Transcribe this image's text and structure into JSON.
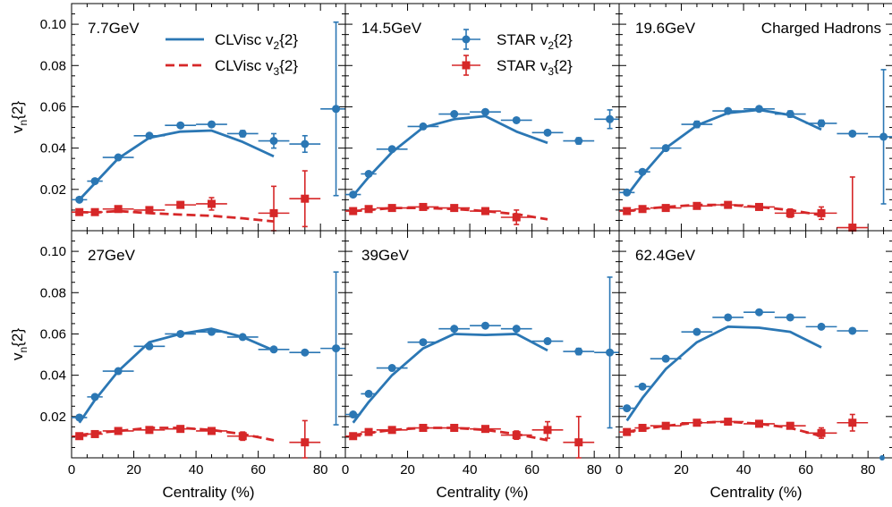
{
  "annotation": "Charged Hadrons",
  "legend": [
    {
      "label": "CLVisc v",
      "sub": "2",
      "suffix": "{2}",
      "kind": "model",
      "series": "v2"
    },
    {
      "label": "CLVisc v",
      "sub": "3",
      "suffix": "{2}",
      "kind": "model",
      "series": "v3"
    },
    {
      "label": "STAR v",
      "sub": "2",
      "suffix": "{2}",
      "kind": "data",
      "series": "v2"
    },
    {
      "label": "STAR v",
      "sub": "3",
      "suffix": "{2}",
      "kind": "data",
      "series": "v3"
    }
  ],
  "colors": {
    "v2": "#2b77b4",
    "v3": "#d62728"
  },
  "axes": {
    "xlabel": "Centrality (%)",
    "ylabel_main": "v",
    "ylabel_sub": "n",
    "ylabel_suffix": "{2}",
    "xlim": [
      0,
      88
    ],
    "ylim": [
      0,
      0.11
    ],
    "xticks": [
      0,
      20,
      40,
      60,
      80
    ],
    "yticks": [
      0.02,
      0.04,
      0.06,
      0.08,
      0.1
    ],
    "ytick_labels": [
      "0.02",
      "0.04",
      "0.06",
      "0.08",
      "0.10"
    ]
  },
  "chart_data": [
    {
      "type": "line",
      "panel_label": "7.7GeV",
      "clvisc_v2": {
        "x": [
          2.5,
          7.5,
          15,
          25,
          35,
          45,
          55,
          65
        ],
        "y": [
          0.015,
          0.023,
          0.035,
          0.045,
          0.048,
          0.0485,
          0.043,
          0.036
        ]
      },
      "clvisc_v3": {
        "x": [
          2.5,
          7.5,
          15,
          25,
          35,
          45,
          55,
          65
        ],
        "y": [
          0.009,
          0.0088,
          0.0095,
          0.0085,
          0.0078,
          0.0072,
          0.006,
          0.0045
        ]
      },
      "star_v2": [
        {
          "x": 2.5,
          "y": 0.015,
          "xerr": 2.5,
          "yerr": 0.001
        },
        {
          "x": 7.5,
          "y": 0.024,
          "xerr": 2.5,
          "yerr": 0.001
        },
        {
          "x": 15,
          "y": 0.0355,
          "xerr": 5,
          "yerr": 0.001
        },
        {
          "x": 25,
          "y": 0.046,
          "xerr": 5,
          "yerr": 0.001
        },
        {
          "x": 35,
          "y": 0.051,
          "xerr": 5,
          "yerr": 0.001
        },
        {
          "x": 45,
          "y": 0.0515,
          "xerr": 5,
          "yerr": 0.0012
        },
        {
          "x": 55,
          "y": 0.047,
          "xerr": 5,
          "yerr": 0.0015
        },
        {
          "x": 65,
          "y": 0.0435,
          "xerr": 5,
          "yerr": 0.0035
        },
        {
          "x": 75,
          "y": 0.042,
          "xerr": 5,
          "yerr": 0.004
        },
        {
          "x": 85,
          "y": 0.059,
          "xerr": 5,
          "yerr": 0.042
        }
      ],
      "star_v3": [
        {
          "x": 2.5,
          "y": 0.009,
          "xerr": 2.5,
          "yerr": 0.001
        },
        {
          "x": 7.5,
          "y": 0.009,
          "xerr": 2.5,
          "yerr": 0.001
        },
        {
          "x": 15,
          "y": 0.0105,
          "xerr": 5,
          "yerr": 0.001
        },
        {
          "x": 25,
          "y": 0.01,
          "xerr": 5,
          "yerr": 0.001
        },
        {
          "x": 35,
          "y": 0.0125,
          "xerr": 5,
          "yerr": 0.0015
        },
        {
          "x": 45,
          "y": 0.013,
          "xerr": 5,
          "yerr": 0.003
        },
        {
          "x": 65,
          "y": 0.0085,
          "xerr": 5,
          "yerr": 0.013
        },
        {
          "x": 75,
          "y": 0.0155,
          "xerr": 5,
          "yerr": 0.0135
        }
      ]
    },
    {
      "type": "line",
      "panel_label": "14.5GeV",
      "clvisc_v2": {
        "x": [
          2.5,
          7.5,
          15,
          25,
          35,
          45,
          55,
          65
        ],
        "y": [
          0.017,
          0.026,
          0.038,
          0.05,
          0.054,
          0.0555,
          0.048,
          0.0425
        ]
      },
      "clvisc_v3": {
        "x": [
          2.5,
          7.5,
          15,
          25,
          35,
          45,
          55,
          65
        ],
        "y": [
          0.0095,
          0.01,
          0.011,
          0.011,
          0.0105,
          0.0095,
          0.008,
          0.0055
        ]
      },
      "star_v2": [
        {
          "x": 2.5,
          "y": 0.0175,
          "xerr": 2.5,
          "yerr": 0.001
        },
        {
          "x": 7.5,
          "y": 0.0275,
          "xerr": 2.5,
          "yerr": 0.001
        },
        {
          "x": 15,
          "y": 0.0395,
          "xerr": 5,
          "yerr": 0.001
        },
        {
          "x": 25,
          "y": 0.0505,
          "xerr": 5,
          "yerr": 0.001
        },
        {
          "x": 35,
          "y": 0.0565,
          "xerr": 5,
          "yerr": 0.001
        },
        {
          "x": 45,
          "y": 0.0575,
          "xerr": 5,
          "yerr": 0.001
        },
        {
          "x": 55,
          "y": 0.0535,
          "xerr": 5,
          "yerr": 0.001
        },
        {
          "x": 65,
          "y": 0.0475,
          "xerr": 5,
          "yerr": 0.001
        },
        {
          "x": 75,
          "y": 0.0435,
          "xerr": 5,
          "yerr": 0.0015
        },
        {
          "x": 85,
          "y": 0.054,
          "xerr": 5,
          "yerr": 0.0045
        }
      ],
      "star_v3": [
        {
          "x": 2.5,
          "y": 0.0095,
          "xerr": 2.5,
          "yerr": 0.001
        },
        {
          "x": 7.5,
          "y": 0.0105,
          "xerr": 2.5,
          "yerr": 0.001
        },
        {
          "x": 15,
          "y": 0.011,
          "xerr": 5,
          "yerr": 0.001
        },
        {
          "x": 25,
          "y": 0.0115,
          "xerr": 5,
          "yerr": 0.001
        },
        {
          "x": 35,
          "y": 0.011,
          "xerr": 5,
          "yerr": 0.001
        },
        {
          "x": 45,
          "y": 0.0095,
          "xerr": 5,
          "yerr": 0.0015
        },
        {
          "x": 55,
          "y": 0.0065,
          "xerr": 5,
          "yerr": 0.0035
        }
      ]
    },
    {
      "type": "line",
      "panel_label": "19.6GeV",
      "clvisc_v2": {
        "x": [
          2.5,
          7.5,
          15,
          25,
          35,
          45,
          55,
          65
        ],
        "y": [
          0.017,
          0.027,
          0.04,
          0.051,
          0.057,
          0.0585,
          0.056,
          0.049
        ]
      },
      "clvisc_v3": {
        "x": [
          2.5,
          7.5,
          15,
          25,
          35,
          45,
          55,
          65
        ],
        "y": [
          0.0095,
          0.0105,
          0.0115,
          0.0125,
          0.0125,
          0.0115,
          0.01,
          0.0075
        ]
      },
      "star_v2": [
        {
          "x": 2.5,
          "y": 0.0185,
          "xerr": 2.5,
          "yerr": 0.001
        },
        {
          "x": 7.5,
          "y": 0.0285,
          "xerr": 2.5,
          "yerr": 0.001
        },
        {
          "x": 15,
          "y": 0.04,
          "xerr": 5,
          "yerr": 0.001
        },
        {
          "x": 25,
          "y": 0.0515,
          "xerr": 5,
          "yerr": 0.0015
        },
        {
          "x": 35,
          "y": 0.058,
          "xerr": 5,
          "yerr": 0.001
        },
        {
          "x": 45,
          "y": 0.059,
          "xerr": 5,
          "yerr": 0.001
        },
        {
          "x": 55,
          "y": 0.0565,
          "xerr": 5,
          "yerr": 0.0015
        },
        {
          "x": 65,
          "y": 0.052,
          "xerr": 5,
          "yerr": 0.0015
        },
        {
          "x": 75,
          "y": 0.047,
          "xerr": 5,
          "yerr": 0.001
        },
        {
          "x": 85,
          "y": 0.0455,
          "xerr": 5,
          "yerr": 0.0325
        }
      ],
      "star_v3": [
        {
          "x": 2.5,
          "y": 0.0095,
          "xerr": 2.5,
          "yerr": 0.001
        },
        {
          "x": 7.5,
          "y": 0.0105,
          "xerr": 2.5,
          "yerr": 0.001
        },
        {
          "x": 15,
          "y": 0.011,
          "xerr": 5,
          "yerr": 0.001
        },
        {
          "x": 25,
          "y": 0.012,
          "xerr": 5,
          "yerr": 0.001
        },
        {
          "x": 35,
          "y": 0.0125,
          "xerr": 5,
          "yerr": 0.001
        },
        {
          "x": 45,
          "y": 0.0115,
          "xerr": 5,
          "yerr": 0.001
        },
        {
          "x": 55,
          "y": 0.0085,
          "xerr": 5,
          "yerr": 0.002
        },
        {
          "x": 65,
          "y": 0.0085,
          "xerr": 5,
          "yerr": 0.003
        },
        {
          "x": 75,
          "y": 0.0015,
          "xerr": 5,
          "yerr": 0.0245
        }
      ]
    },
    {
      "type": "line",
      "panel_label": "27GeV",
      "clvisc_v2": {
        "x": [
          2.5,
          7.5,
          15,
          25,
          35,
          45,
          55,
          65
        ],
        "y": [
          0.017,
          0.028,
          0.042,
          0.056,
          0.06,
          0.0625,
          0.0585,
          0.052
        ]
      },
      "clvisc_v3": {
        "x": [
          2.5,
          7.5,
          15,
          25,
          35,
          45,
          55,
          65
        ],
        "y": [
          0.011,
          0.012,
          0.013,
          0.0145,
          0.0145,
          0.0135,
          0.0115,
          0.0085
        ]
      },
      "star_v2": [
        {
          "x": 2.5,
          "y": 0.0195,
          "xerr": 2.5,
          "yerr": 0.001
        },
        {
          "x": 7.5,
          "y": 0.0295,
          "xerr": 2.5,
          "yerr": 0.001
        },
        {
          "x": 15,
          "y": 0.042,
          "xerr": 5,
          "yerr": 0.001
        },
        {
          "x": 25,
          "y": 0.054,
          "xerr": 5,
          "yerr": 0.001
        },
        {
          "x": 35,
          "y": 0.06,
          "xerr": 5,
          "yerr": 0.001
        },
        {
          "x": 45,
          "y": 0.061,
          "xerr": 5,
          "yerr": 0.001
        },
        {
          "x": 55,
          "y": 0.0585,
          "xerr": 5,
          "yerr": 0.001
        },
        {
          "x": 65,
          "y": 0.0525,
          "xerr": 5,
          "yerr": 0.001
        },
        {
          "x": 75,
          "y": 0.051,
          "xerr": 5,
          "yerr": 0.001
        },
        {
          "x": 85,
          "y": 0.053,
          "xerr": 5,
          "yerr": 0.037
        }
      ],
      "star_v3": [
        {
          "x": 2.5,
          "y": 0.0105,
          "xerr": 2.5,
          "yerr": 0.001
        },
        {
          "x": 7.5,
          "y": 0.0115,
          "xerr": 2.5,
          "yerr": 0.001
        },
        {
          "x": 15,
          "y": 0.013,
          "xerr": 5,
          "yerr": 0.001
        },
        {
          "x": 25,
          "y": 0.0135,
          "xerr": 5,
          "yerr": 0.001
        },
        {
          "x": 35,
          "y": 0.014,
          "xerr": 5,
          "yerr": 0.001
        },
        {
          "x": 45,
          "y": 0.013,
          "xerr": 5,
          "yerr": 0.001
        },
        {
          "x": 55,
          "y": 0.0105,
          "xerr": 5,
          "yerr": 0.002
        },
        {
          "x": 75,
          "y": 0.0075,
          "xerr": 5,
          "yerr": 0.0105
        }
      ]
    },
    {
      "type": "line",
      "panel_label": "39GeV",
      "clvisc_v2": {
        "x": [
          2.5,
          7.5,
          15,
          25,
          35,
          45,
          55,
          65
        ],
        "y": [
          0.017,
          0.027,
          0.04,
          0.053,
          0.06,
          0.0595,
          0.06,
          0.052
        ]
      },
      "clvisc_v3": {
        "x": [
          2.5,
          7.5,
          15,
          25,
          35,
          45,
          55,
          65
        ],
        "y": [
          0.011,
          0.012,
          0.0135,
          0.0145,
          0.0145,
          0.0135,
          0.0115,
          0.0085
        ]
      },
      "star_v2": [
        {
          "x": 2.5,
          "y": 0.021,
          "xerr": 2.5,
          "yerr": 0.001
        },
        {
          "x": 7.5,
          "y": 0.031,
          "xerr": 2.5,
          "yerr": 0.001
        },
        {
          "x": 15,
          "y": 0.0435,
          "xerr": 5,
          "yerr": 0.001
        },
        {
          "x": 25,
          "y": 0.056,
          "xerr": 5,
          "yerr": 0.001
        },
        {
          "x": 35,
          "y": 0.0625,
          "xerr": 5,
          "yerr": 0.001
        },
        {
          "x": 45,
          "y": 0.064,
          "xerr": 5,
          "yerr": 0.001
        },
        {
          "x": 55,
          "y": 0.0625,
          "xerr": 5,
          "yerr": 0.001
        },
        {
          "x": 65,
          "y": 0.0565,
          "xerr": 5,
          "yerr": 0.001
        },
        {
          "x": 75,
          "y": 0.0515,
          "xerr": 5,
          "yerr": 0.0015
        },
        {
          "x": 85,
          "y": 0.051,
          "xerr": 5,
          "yerr": 0.0365
        }
      ],
      "star_v3": [
        {
          "x": 2.5,
          "y": 0.0105,
          "xerr": 2.5,
          "yerr": 0.001
        },
        {
          "x": 7.5,
          "y": 0.0125,
          "xerr": 2.5,
          "yerr": 0.001
        },
        {
          "x": 15,
          "y": 0.0135,
          "xerr": 5,
          "yerr": 0.001
        },
        {
          "x": 25,
          "y": 0.0145,
          "xerr": 5,
          "yerr": 0.001
        },
        {
          "x": 35,
          "y": 0.0145,
          "xerr": 5,
          "yerr": 0.001
        },
        {
          "x": 45,
          "y": 0.014,
          "xerr": 5,
          "yerr": 0.001
        },
        {
          "x": 55,
          "y": 0.011,
          "xerr": 5,
          "yerr": 0.002
        },
        {
          "x": 65,
          "y": 0.0135,
          "xerr": 5,
          "yerr": 0.004
        },
        {
          "x": 75,
          "y": 0.0075,
          "xerr": 5,
          "yerr": 0.0125
        }
      ]
    },
    {
      "type": "line",
      "panel_label": "62.4GeV",
      "clvisc_v2": {
        "x": [
          2.5,
          7.5,
          15,
          25,
          35,
          45,
          55,
          65
        ],
        "y": [
          0.018,
          0.029,
          0.043,
          0.056,
          0.0635,
          0.063,
          0.061,
          0.0535
        ]
      },
      "clvisc_v3": {
        "x": [
          2.5,
          7.5,
          15,
          25,
          35,
          45,
          55,
          65
        ],
        "y": [
          0.0125,
          0.014,
          0.0155,
          0.017,
          0.0175,
          0.0165,
          0.0145,
          0.0105
        ]
      },
      "star_v2": [
        {
          "x": 2.5,
          "y": 0.024,
          "xerr": 2.5,
          "yerr": 0.001
        },
        {
          "x": 7.5,
          "y": 0.0345,
          "xerr": 2.5,
          "yerr": 0.001
        },
        {
          "x": 15,
          "y": 0.048,
          "xerr": 5,
          "yerr": 0.001
        },
        {
          "x": 25,
          "y": 0.061,
          "xerr": 5,
          "yerr": 0.001
        },
        {
          "x": 35,
          "y": 0.068,
          "xerr": 5,
          "yerr": 0.001
        },
        {
          "x": 45,
          "y": 0.0705,
          "xerr": 5,
          "yerr": 0.001
        },
        {
          "x": 55,
          "y": 0.068,
          "xerr": 5,
          "yerr": 0.001
        },
        {
          "x": 65,
          "y": 0.0635,
          "xerr": 5,
          "yerr": 0.001
        },
        {
          "x": 75,
          "y": 0.0615,
          "xerr": 5,
          "yerr": 0.001
        }
      ],
      "star_v3": [
        {
          "x": 2.5,
          "y": 0.0125,
          "xerr": 2.5,
          "yerr": 0.001
        },
        {
          "x": 7.5,
          "y": 0.0145,
          "xerr": 2.5,
          "yerr": 0.001
        },
        {
          "x": 15,
          "y": 0.0155,
          "xerr": 5,
          "yerr": 0.001
        },
        {
          "x": 25,
          "y": 0.017,
          "xerr": 5,
          "yerr": 0.001
        },
        {
          "x": 35,
          "y": 0.0175,
          "xerr": 5,
          "yerr": 0.001
        },
        {
          "x": 45,
          "y": 0.0165,
          "xerr": 5,
          "yerr": 0.001
        },
        {
          "x": 55,
          "y": 0.0155,
          "xerr": 5,
          "yerr": 0.0015
        },
        {
          "x": 65,
          "y": 0.012,
          "xerr": 5,
          "yerr": 0.0025
        },
        {
          "x": 75,
          "y": 0.017,
          "xerr": 5,
          "yerr": 0.004
        }
      ]
    }
  ]
}
